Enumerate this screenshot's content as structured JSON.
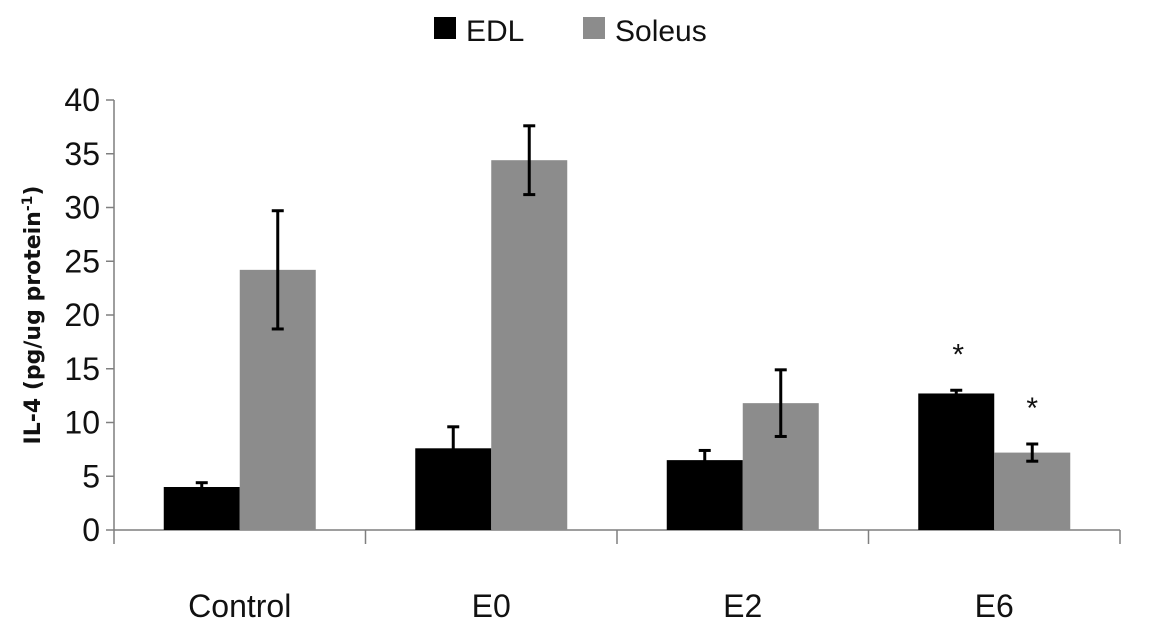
{
  "chart_data": {
    "type": "bar",
    "title": "",
    "xlabel": "",
    "ylabel": "IL-4 (pg/ug protein",
    "ylabel_superscript": "-1",
    "ylabel_close": ")",
    "ylim": [
      0,
      40
    ],
    "yticks": [
      0,
      5,
      10,
      15,
      20,
      25,
      30,
      35,
      40
    ],
    "categories": [
      "Control",
      "E0",
      "E2",
      "E6"
    ],
    "legend_position": "top-center",
    "grid": false,
    "series": [
      {
        "name": "EDL",
        "color": "#000000",
        "values": [
          4.0,
          7.6,
          6.5,
          12.7
        ],
        "errors": [
          0.4,
          2.0,
          0.9,
          0.3
        ],
        "significance": [
          "",
          "",
          "",
          "*"
        ]
      },
      {
        "name": "Soleus",
        "color": "#8c8c8c",
        "values": [
          24.2,
          34.4,
          11.8,
          7.2
        ],
        "errors": [
          5.5,
          3.2,
          3.1,
          0.8
        ],
        "significance": [
          "",
          "",
          "",
          "*"
        ]
      }
    ]
  }
}
